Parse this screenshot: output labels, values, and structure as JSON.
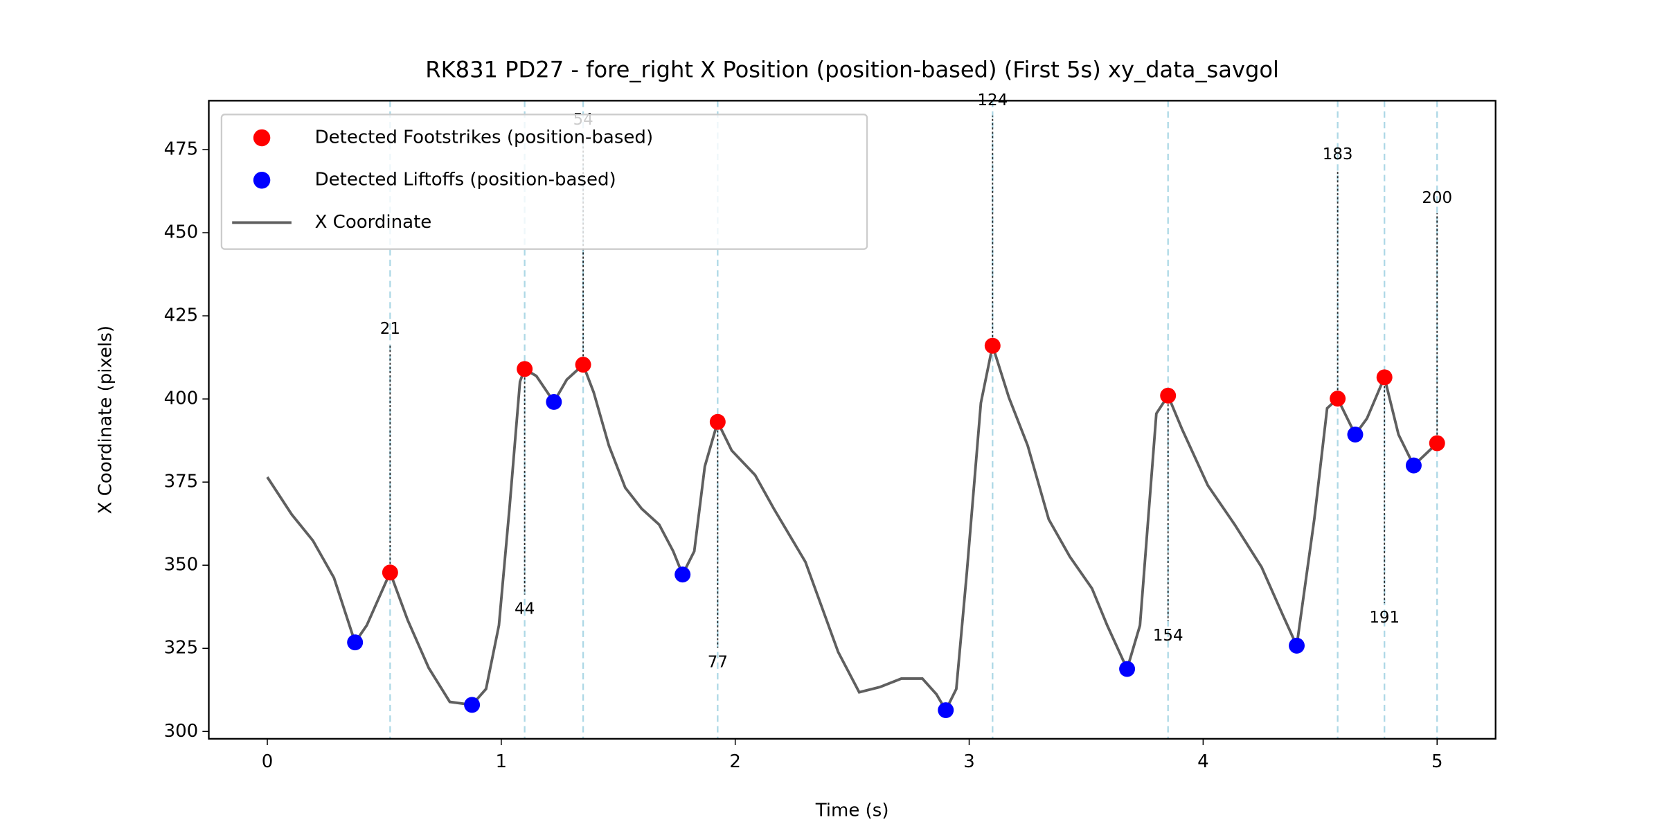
{
  "chart_data": {
    "type": "line",
    "title": "RK831 PD27 - fore_right X Position (position-based) (First 5s) xy_data_savgol",
    "x_label": "Time (s)",
    "y_label": "X Coordinate (pixels)",
    "xlim": [
      -0.25,
      5.25
    ],
    "ylim": [
      297.8,
      489.7
    ],
    "xticks": [
      0,
      1,
      2,
      3,
      4,
      5
    ],
    "yticks": [
      300,
      325,
      350,
      375,
      400,
      425,
      450,
      475
    ],
    "grid": false,
    "legend": "upper left",
    "vline_color": "#add8e6",
    "series": [
      {
        "name": "Detected Footstrikes (position-based)",
        "type": "scatter",
        "color": "#ff0000",
        "x": [
          0.525,
          1.1,
          1.35,
          1.925,
          3.1,
          3.85,
          4.575,
          4.775,
          5.0
        ],
        "values": [
          347.8,
          409.0,
          410.3,
          393.1,
          416.0,
          401.0,
          400.1,
          406.5,
          386.7
        ],
        "frames": [
          21,
          44,
          54,
          77,
          124,
          154,
          183,
          191,
          200
        ],
        "frame_label_y": [
          421.0,
          336.7,
          483.9,
          320.7,
          489.7,
          328.7,
          473.4,
          334.1,
          460.3
        ]
      },
      {
        "name": "Detected Liftoffs (position-based)",
        "type": "scatter",
        "color": "#0000ff",
        "x": [
          0.375,
          0.875,
          1.225,
          1.775,
          2.9,
          3.675,
          4.4,
          4.65,
          4.9
        ],
        "values": [
          326.8,
          308.0,
          399.1,
          347.2,
          306.4,
          318.8,
          325.8,
          389.3,
          380.0
        ]
      },
      {
        "name": "X Coordinate",
        "type": "line",
        "color": "#5f5f5f",
        "x": [
          0,
          0.104,
          0.195,
          0.285,
          0.375,
          0.425,
          0.525,
          0.6,
          0.69,
          0.78,
          0.875,
          0.935,
          0.99,
          1.035,
          1.08,
          1.1,
          1.15,
          1.225,
          1.28,
          1.35,
          1.395,
          1.46,
          1.53,
          1.6,
          1.675,
          1.735,
          1.775,
          1.825,
          1.87,
          1.925,
          1.985,
          2.085,
          2.165,
          2.3,
          2.44,
          2.53,
          2.62,
          2.71,
          2.8,
          2.86,
          2.9,
          2.945,
          2.99,
          3.05,
          3.1,
          3.17,
          3.25,
          3.34,
          3.43,
          3.525,
          3.59,
          3.675,
          3.73,
          3.8,
          3.85,
          3.91,
          4.02,
          4.135,
          4.25,
          4.34,
          4.4,
          4.475,
          4.53,
          4.575,
          4.65,
          4.7,
          4.775,
          4.835,
          4.9,
          5.0
        ],
        "values": [
          376.5,
          365.3,
          357.4,
          346.2,
          326.8,
          331.9,
          347.8,
          333.5,
          319.1,
          308.9,
          308.0,
          312.8,
          331.9,
          367.0,
          405.2,
          409.0,
          406.9,
          399.1,
          405.8,
          410.3,
          402.0,
          386.0,
          373.3,
          367.0,
          362.2,
          354.2,
          347.2,
          354.2,
          379.7,
          393.1,
          384.5,
          377.1,
          367.0,
          351.0,
          323.9,
          311.8,
          313.4,
          315.9,
          315.9,
          311.2,
          306.4,
          312.8,
          347.8,
          398.8,
          416.0,
          400.4,
          386.0,
          363.8,
          352.6,
          343.0,
          331.9,
          318.8,
          331.9,
          395.6,
          401.0,
          390.9,
          374.0,
          362.2,
          349.4,
          335.1,
          325.8,
          363.8,
          397.2,
          400.1,
          389.3,
          394.1,
          406.5,
          389.3,
          380.0,
          386.7
        ]
      }
    ]
  }
}
